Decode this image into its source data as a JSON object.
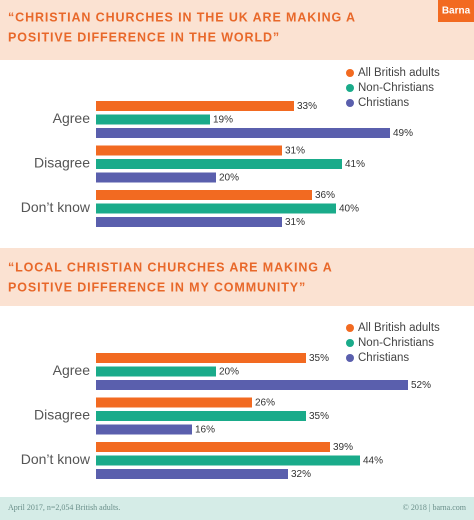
{
  "chart_data": [
    {
      "type": "bar",
      "orientation": "horizontal",
      "title": [
        "“CHRISTIAN CHURCHES IN THE UK ARE MAKING A",
        "POSITIVE DIFFERENCE IN THE WORLD”"
      ],
      "categories": [
        "Agree",
        "Disagree",
        "Don’t know"
      ],
      "series": [
        {
          "name": "All British adults",
          "color": "#f26a21",
          "values": [
            33,
            31,
            36
          ],
          "value_labels": [
            "33%",
            "31%",
            "36%"
          ]
        },
        {
          "name": "Non-Christians",
          "color": "#1aab8a",
          "values": [
            19,
            41,
            40
          ],
          "value_labels": [
            "19%",
            "41%",
            "40%"
          ]
        },
        {
          "name": "Christians",
          "color": "#5a5fad",
          "values": [
            49,
            20,
            31
          ],
          "value_labels": [
            "49%",
            "20%",
            "31%"
          ]
        }
      ]
    },
    {
      "type": "bar",
      "orientation": "horizontal",
      "title": [
        "“LOCAL CHRISTIAN CHURCHES ARE MAKING A",
        "POSITIVE DIFFERENCE IN MY COMMUNITY”"
      ],
      "categories": [
        "Agree",
        "Disagree",
        "Don’t know"
      ],
      "series": [
        {
          "name": "All British adults",
          "color": "#f26a21",
          "values": [
            35,
            26,
            39
          ],
          "value_labels": [
            "35%",
            "26%",
            "39%"
          ]
        },
        {
          "name": "Non-Christians",
          "color": "#1aab8a",
          "values": [
            20,
            35,
            44
          ],
          "value_labels": [
            "20%",
            "35%",
            "44%"
          ]
        },
        {
          "name": "Christians",
          "color": "#5a5fad",
          "values": [
            52,
            16,
            32
          ],
          "value_labels": [
            "52%",
            "16%",
            "32%"
          ]
        }
      ]
    }
  ],
  "logo": "Barna",
  "footer": {
    "note": "April 2017, n=2,054 British adults.",
    "credit": "© 2018 | barna.com"
  }
}
